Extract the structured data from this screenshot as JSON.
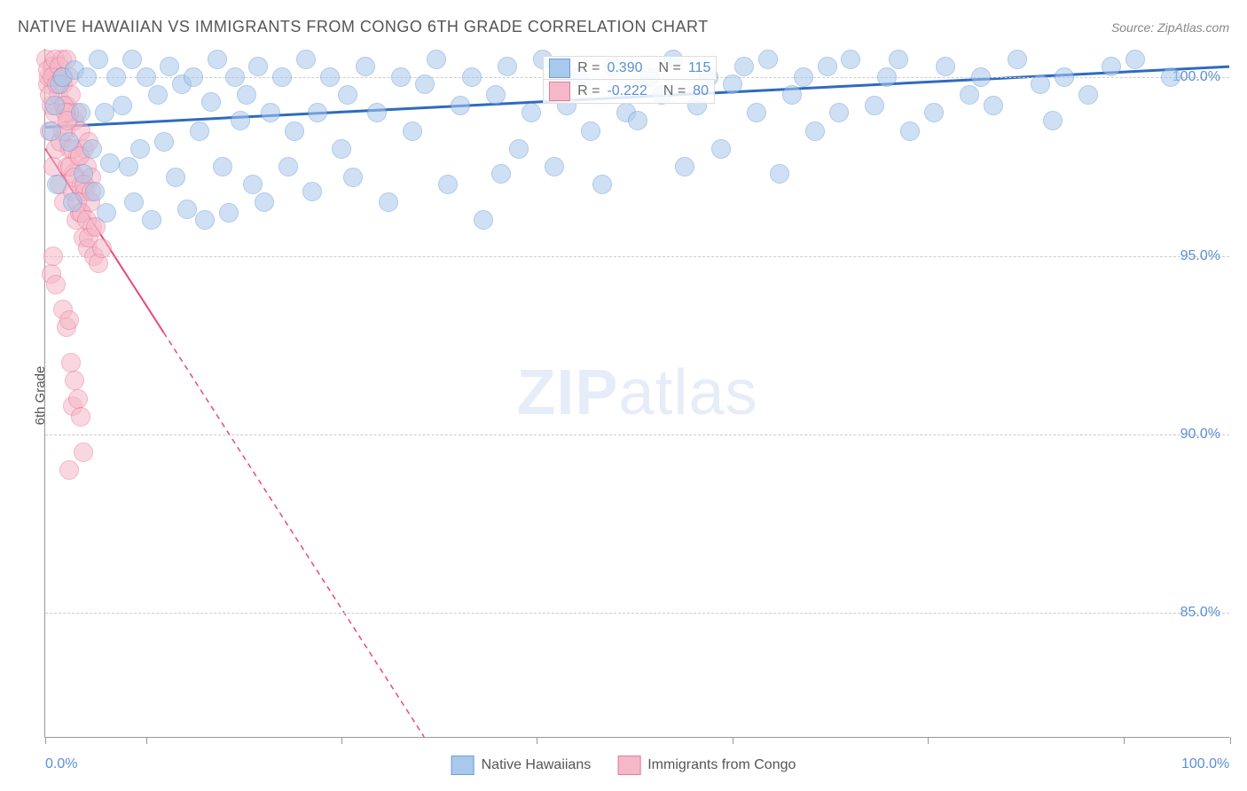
{
  "title": "NATIVE HAWAIIAN VS IMMIGRANTS FROM CONGO 6TH GRADE CORRELATION CHART",
  "source": "Source: ZipAtlas.com",
  "y_axis_label": "6th Grade",
  "watermark_zip": "ZIP",
  "watermark_atlas": "atlas",
  "chart": {
    "type": "scatter-correlation",
    "background_color": "#ffffff",
    "grid_color": "#cccccc",
    "axis_color": "#999999",
    "tick_label_color": "#5b8fd6",
    "axis_label_color": "#555555",
    "title_fontsize": 18,
    "tick_fontsize": 16,
    "label_fontsize": 15,
    "x_range": [
      0,
      100
    ],
    "y_range": [
      81.5,
      100.8
    ],
    "y_ticks": [
      85.0,
      90.0,
      95.0,
      100.0
    ],
    "y_tick_labels": [
      "85.0%",
      "90.0%",
      "95.0%",
      "100.0%"
    ],
    "x_ticks": [
      0,
      8.5,
      25,
      41.5,
      58,
      74.5,
      91,
      100
    ],
    "x_tick_labels": {
      "0": "0.0%",
      "100": "100.0%"
    },
    "marker_radius": 10,
    "marker_opacity": 0.55,
    "series": [
      {
        "name": "Native Hawaiians",
        "color_fill": "#a8c8ec",
        "color_stroke": "#6b9fd8",
        "trend_color": "#2e6bc0",
        "trend_width": 3,
        "trend_dash": "none",
        "trend_start": [
          0,
          98.6
        ],
        "trend_end": [
          100,
          100.3
        ],
        "r_value": "0.390",
        "n_value": "115",
        "points": [
          [
            0.5,
            98.5
          ],
          [
            0.8,
            99.2
          ],
          [
            1.0,
            97.0
          ],
          [
            1.2,
            99.8
          ],
          [
            1.5,
            100.0
          ],
          [
            2.0,
            98.2
          ],
          [
            2.3,
            96.5
          ],
          [
            2.5,
            100.2
          ],
          [
            3.0,
            99.0
          ],
          [
            3.2,
            97.3
          ],
          [
            3.5,
            100.0
          ],
          [
            4.0,
            98.0
          ],
          [
            4.2,
            96.8
          ],
          [
            4.5,
            100.5
          ],
          [
            5.0,
            99.0
          ],
          [
            5.2,
            96.2
          ],
          [
            5.5,
            97.6
          ],
          [
            6.0,
            100.0
          ],
          [
            6.5,
            99.2
          ],
          [
            7.0,
            97.5
          ],
          [
            7.3,
            100.5
          ],
          [
            7.5,
            96.5
          ],
          [
            8.0,
            98.0
          ],
          [
            8.5,
            100.0
          ],
          [
            9.0,
            96.0
          ],
          [
            9.5,
            99.5
          ],
          [
            10.0,
            98.2
          ],
          [
            10.5,
            100.3
          ],
          [
            11.0,
            97.2
          ],
          [
            11.5,
            99.8
          ],
          [
            12.0,
            96.3
          ],
          [
            12.5,
            100.0
          ],
          [
            13.0,
            98.5
          ],
          [
            13.5,
            96.0
          ],
          [
            14.0,
            99.3
          ],
          [
            14.5,
            100.5
          ],
          [
            15.0,
            97.5
          ],
          [
            15.5,
            96.2
          ],
          [
            16.0,
            100.0
          ],
          [
            16.5,
            98.8
          ],
          [
            17.0,
            99.5
          ],
          [
            17.5,
            97.0
          ],
          [
            18.0,
            100.3
          ],
          [
            18.5,
            96.5
          ],
          [
            19.0,
            99.0
          ],
          [
            20.0,
            100.0
          ],
          [
            20.5,
            97.5
          ],
          [
            21.0,
            98.5
          ],
          [
            22.0,
            100.5
          ],
          [
            22.5,
            96.8
          ],
          [
            23.0,
            99.0
          ],
          [
            24.0,
            100.0
          ],
          [
            25.0,
            98.0
          ],
          [
            25.5,
            99.5
          ],
          [
            26.0,
            97.2
          ],
          [
            27.0,
            100.3
          ],
          [
            28.0,
            99.0
          ],
          [
            29.0,
            96.5
          ],
          [
            30.0,
            100.0
          ],
          [
            31.0,
            98.5
          ],
          [
            32.0,
            99.8
          ],
          [
            33.0,
            100.5
          ],
          [
            34.0,
            97.0
          ],
          [
            35.0,
            99.2
          ],
          [
            36.0,
            100.0
          ],
          [
            37.0,
            96.0
          ],
          [
            38.0,
            99.5
          ],
          [
            38.5,
            97.3
          ],
          [
            39.0,
            100.3
          ],
          [
            40.0,
            98.0
          ],
          [
            41.0,
            99.0
          ],
          [
            42.0,
            100.5
          ],
          [
            43.0,
            97.5
          ],
          [
            44.0,
            99.2
          ],
          [
            45.0,
            100.0
          ],
          [
            46.0,
            98.5
          ],
          [
            47.0,
            97.0
          ],
          [
            48.0,
            100.3
          ],
          [
            49.0,
            99.0
          ],
          [
            50.0,
            98.8
          ],
          [
            51.0,
            100.0
          ],
          [
            52.0,
            99.5
          ],
          [
            53.0,
            100.5
          ],
          [
            54.0,
            97.5
          ],
          [
            55.0,
            99.2
          ],
          [
            56.0,
            100.0
          ],
          [
            57.0,
            98.0
          ],
          [
            58.0,
            99.8
          ],
          [
            59.0,
            100.3
          ],
          [
            60.0,
            99.0
          ],
          [
            61.0,
            100.5
          ],
          [
            62.0,
            97.3
          ],
          [
            63.0,
            99.5
          ],
          [
            64.0,
            100.0
          ],
          [
            65.0,
            98.5
          ],
          [
            66.0,
            100.3
          ],
          [
            67.0,
            99.0
          ],
          [
            68.0,
            100.5
          ],
          [
            70.0,
            99.2
          ],
          [
            71.0,
            100.0
          ],
          [
            72.0,
            100.5
          ],
          [
            73.0,
            98.5
          ],
          [
            75.0,
            99.0
          ],
          [
            76.0,
            100.3
          ],
          [
            78.0,
            99.5
          ],
          [
            79.0,
            100.0
          ],
          [
            80.0,
            99.2
          ],
          [
            82.0,
            100.5
          ],
          [
            84.0,
            99.8
          ],
          [
            85.0,
            98.8
          ],
          [
            86.0,
            100.0
          ],
          [
            88.0,
            99.5
          ],
          [
            90.0,
            100.3
          ],
          [
            92.0,
            100.5
          ],
          [
            95.0,
            100.0
          ]
        ]
      },
      {
        "name": "Immigrants from Congo",
        "color_fill": "#f5b8c8",
        "color_stroke": "#e87a9a",
        "trend_color": "#e84a7a",
        "trend_width": 2,
        "trend_dash": "solid-then-dash",
        "trend_solid_end_x": 10,
        "trend_start": [
          0,
          98.0
        ],
        "trend_end": [
          32,
          81.5
        ],
        "r_value": "-0.222",
        "n_value": "80",
        "points": [
          [
            0.1,
            100.5
          ],
          [
            0.2,
            99.8
          ],
          [
            0.3,
            100.0
          ],
          [
            0.4,
            98.5
          ],
          [
            0.5,
            99.2
          ],
          [
            0.6,
            100.3
          ],
          [
            0.7,
            97.5
          ],
          [
            0.8,
            99.0
          ],
          [
            0.9,
            98.0
          ],
          [
            1.0,
            100.0
          ],
          [
            1.1,
            99.5
          ],
          [
            1.2,
            97.0
          ],
          [
            1.3,
            98.2
          ],
          [
            1.4,
            100.5
          ],
          [
            1.5,
            99.8
          ],
          [
            1.6,
            96.5
          ],
          [
            1.7,
            98.5
          ],
          [
            1.8,
            99.2
          ],
          [
            1.9,
            97.5
          ],
          [
            2.0,
            100.0
          ],
          [
            2.1,
            98.0
          ],
          [
            2.2,
            99.5
          ],
          [
            2.3,
            96.8
          ],
          [
            2.4,
            97.3
          ],
          [
            2.5,
            98.8
          ],
          [
            2.6,
            96.0
          ],
          [
            2.7,
            99.0
          ],
          [
            2.8,
            97.8
          ],
          [
            2.9,
            96.2
          ],
          [
            3.0,
            98.5
          ],
          [
            3.1,
            97.0
          ],
          [
            3.2,
            95.5
          ],
          [
            3.3,
            98.0
          ],
          [
            3.4,
            96.8
          ],
          [
            3.5,
            97.5
          ],
          [
            3.6,
            95.2
          ],
          [
            3.7,
            98.2
          ],
          [
            3.8,
            96.5
          ],
          [
            3.9,
            97.2
          ],
          [
            4.0,
            95.8
          ],
          [
            0.2,
            100.2
          ],
          [
            0.4,
            99.5
          ],
          [
            0.6,
            100.0
          ],
          [
            0.8,
            100.5
          ],
          [
            1.0,
            99.8
          ],
          [
            1.2,
            100.3
          ],
          [
            1.4,
            100.0
          ],
          [
            1.6,
            99.2
          ],
          [
            1.8,
            100.5
          ],
          [
            2.0,
            99.0
          ],
          [
            0.5,
            94.5
          ],
          [
            0.7,
            95.0
          ],
          [
            0.9,
            94.2
          ],
          [
            1.5,
            93.5
          ],
          [
            1.8,
            93.0
          ],
          [
            2.0,
            93.2
          ],
          [
            2.2,
            92.0
          ],
          [
            2.5,
            91.5
          ],
          [
            2.3,
            90.8
          ],
          [
            2.8,
            91.0
          ],
          [
            3.0,
            90.5
          ],
          [
            3.2,
            89.5
          ],
          [
            2.0,
            89.0
          ],
          [
            1.5,
            98.5
          ],
          [
            1.7,
            99.0
          ],
          [
            1.9,
            98.8
          ],
          [
            2.1,
            97.5
          ],
          [
            2.3,
            98.0
          ],
          [
            2.5,
            97.2
          ],
          [
            2.7,
            96.5
          ],
          [
            2.9,
            97.8
          ],
          [
            3.1,
            96.2
          ],
          [
            3.3,
            97.0
          ],
          [
            3.5,
            96.0
          ],
          [
            3.7,
            95.5
          ],
          [
            3.9,
            96.8
          ],
          [
            4.1,
            95.0
          ],
          [
            4.3,
            95.8
          ],
          [
            4.5,
            94.8
          ],
          [
            4.8,
            95.2
          ]
        ]
      }
    ]
  },
  "stats_label_r": "R =",
  "stats_label_n": "N =",
  "legend": [
    {
      "label": "Native Hawaiians",
      "fill": "#a8c8ec",
      "stroke": "#6b9fd8"
    },
    {
      "label": "Immigrants from Congo",
      "fill": "#f5b8c8",
      "stroke": "#e87a9a"
    }
  ]
}
